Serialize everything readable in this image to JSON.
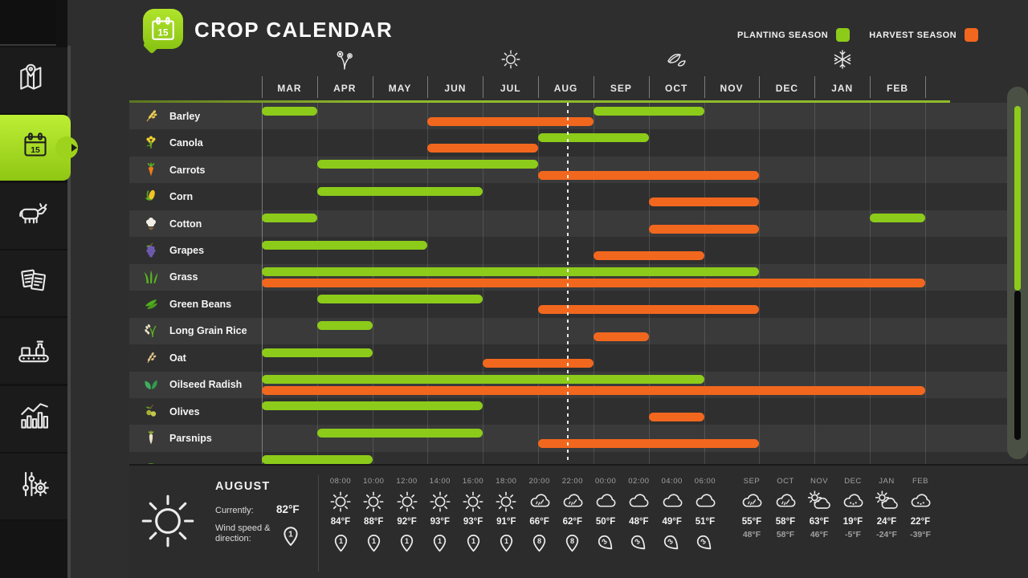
{
  "header": {
    "title": "CROP CALENDAR",
    "badge_day": "15",
    "legend": [
      {
        "label": "PLANTING SEASON",
        "color": "#8ccb1a"
      },
      {
        "label": "HARVEST SEASON",
        "color": "#f2671e"
      }
    ]
  },
  "colors": {
    "planting": "#8ccb1a",
    "harvest": "#f2671e",
    "accent": "#9ed31c"
  },
  "calendar": {
    "months": [
      "MAR",
      "APR",
      "MAY",
      "JUN",
      "JUL",
      "AUG",
      "SEP",
      "OCT",
      "NOV",
      "DEC",
      "JAN",
      "FEB"
    ],
    "season_markers": [
      {
        "icon": "spring-flower-icon",
        "month_index": 1
      },
      {
        "icon": "summer-sun-icon",
        "month_index": 4
      },
      {
        "icon": "autumn-leaves-icon",
        "month_index": 7
      },
      {
        "icon": "winter-snowflake-icon",
        "month_index": 10
      }
    ],
    "current_position_months": 5.52,
    "crops": [
      {
        "name": "Barley",
        "icon": "barley-icon",
        "planting": [
          [
            0,
            1
          ],
          [
            6,
            8
          ]
        ],
        "harvest": [
          [
            3,
            6
          ]
        ]
      },
      {
        "name": "Canola",
        "icon": "canola-icon",
        "planting": [
          [
            5,
            7
          ]
        ],
        "harvest": [
          [
            3,
            5
          ]
        ]
      },
      {
        "name": "Carrots",
        "icon": "carrots-icon",
        "planting": [
          [
            1,
            5
          ]
        ],
        "harvest": [
          [
            5,
            9
          ]
        ]
      },
      {
        "name": "Corn",
        "icon": "corn-icon",
        "planting": [
          [
            1,
            4
          ]
        ],
        "harvest": [
          [
            7,
            9
          ]
        ]
      },
      {
        "name": "Cotton",
        "icon": "cotton-icon",
        "planting": [
          [
            0,
            1
          ],
          [
            11,
            12
          ]
        ],
        "harvest": [
          [
            7,
            9
          ]
        ]
      },
      {
        "name": "Grapes",
        "icon": "grapes-icon",
        "planting": [
          [
            0,
            3
          ]
        ],
        "harvest": [
          [
            6,
            8
          ]
        ]
      },
      {
        "name": "Grass",
        "icon": "grass-icon",
        "planting": [
          [
            0,
            9
          ]
        ],
        "harvest": [
          [
            0,
            12
          ]
        ]
      },
      {
        "name": "Green Beans",
        "icon": "green-beans-icon",
        "planting": [
          [
            1,
            4
          ]
        ],
        "harvest": [
          [
            5,
            9
          ]
        ]
      },
      {
        "name": "Long Grain Rice",
        "icon": "rice-icon",
        "planting": [
          [
            1,
            2
          ]
        ],
        "harvest": [
          [
            6,
            7
          ]
        ]
      },
      {
        "name": "Oat",
        "icon": "oat-icon",
        "planting": [
          [
            0,
            2
          ]
        ],
        "harvest": [
          [
            4,
            6
          ]
        ]
      },
      {
        "name": "Oilseed Radish",
        "icon": "oilseed-radish-icon",
        "planting": [
          [
            0,
            8
          ]
        ],
        "harvest": [
          [
            0,
            12
          ]
        ]
      },
      {
        "name": "Olives",
        "icon": "olives-icon",
        "planting": [
          [
            0,
            4
          ]
        ],
        "harvest": [
          [
            7,
            8
          ]
        ]
      },
      {
        "name": "Parsnips",
        "icon": "parsnips-icon",
        "planting": [
          [
            1,
            4
          ]
        ],
        "harvest": [
          [
            5,
            9
          ]
        ]
      },
      {
        "name": "",
        "icon": "peas-icon",
        "planting": [
          [
            0,
            2
          ]
        ],
        "harvest": []
      }
    ]
  },
  "weather": {
    "month": "AUGUST",
    "currently_label": "Currently:",
    "currently_value": "82°F",
    "wind_label_line1": "Wind speed &",
    "wind_label_line2": "direction:",
    "wind_value": "1",
    "hourly": [
      {
        "time": "08:00",
        "icon": "sun-icon",
        "temp": "84°F",
        "wind": "1",
        "wind_rotation": 0
      },
      {
        "time": "10:00",
        "icon": "sun-icon",
        "temp": "88°F",
        "wind": "1",
        "wind_rotation": 0
      },
      {
        "time": "12:00",
        "icon": "sun-icon",
        "temp": "92°F",
        "wind": "1",
        "wind_rotation": 0
      },
      {
        "time": "14:00",
        "icon": "sun-icon",
        "temp": "93°F",
        "wind": "1",
        "wind_rotation": 0
      },
      {
        "time": "16:00",
        "icon": "sun-icon",
        "temp": "93°F",
        "wind": "1",
        "wind_rotation": 0
      },
      {
        "time": "18:00",
        "icon": "sun-icon",
        "temp": "91°F",
        "wind": "1",
        "wind_rotation": 0
      },
      {
        "time": "20:00",
        "icon": "rain-icon",
        "temp": "66°F",
        "wind": "8",
        "wind_rotation": 0
      },
      {
        "time": "22:00",
        "icon": "rain-icon",
        "temp": "62°F",
        "wind": "8",
        "wind_rotation": 0
      },
      {
        "time": "00:00",
        "icon": "cloud-icon",
        "temp": "50°F",
        "wind": "3",
        "wind_rotation": -45
      },
      {
        "time": "02:00",
        "icon": "cloud-icon",
        "temp": "48°F",
        "wind": "3",
        "wind_rotation": -45
      },
      {
        "time": "04:00",
        "icon": "cloud-icon",
        "temp": "49°F",
        "wind": "3",
        "wind_rotation": -45
      },
      {
        "time": "06:00",
        "icon": "cloud-icon",
        "temp": "51°F",
        "wind": "3",
        "wind_rotation": -45
      }
    ],
    "monthly": [
      {
        "month": "SEP",
        "icon": "rain-icon",
        "high": "55°F",
        "low": "48°F"
      },
      {
        "month": "OCT",
        "icon": "rain-icon",
        "high": "58°F",
        "low": "58°F"
      },
      {
        "month": "NOV",
        "icon": "partly-cloudy-icon",
        "high": "63°F",
        "low": "46°F"
      },
      {
        "month": "DEC",
        "icon": "snow-icon",
        "high": "19°F",
        "low": "-5°F"
      },
      {
        "month": "JAN",
        "icon": "partly-cloudy-icon",
        "high": "24°F",
        "low": "-24°F"
      },
      {
        "month": "FEB",
        "icon": "snow-icon",
        "high": "22°F",
        "low": "-39°F"
      }
    ]
  },
  "sidebar": {
    "items": [
      {
        "icon": "map-icon",
        "active": false
      },
      {
        "icon": "calendar-icon",
        "active": true
      },
      {
        "icon": "animals-icon",
        "active": false
      },
      {
        "icon": "contracts-icon",
        "active": false
      },
      {
        "icon": "production-icon",
        "active": false
      },
      {
        "icon": "statistics-icon",
        "active": false
      },
      {
        "icon": "settings-icon",
        "active": false
      }
    ]
  }
}
